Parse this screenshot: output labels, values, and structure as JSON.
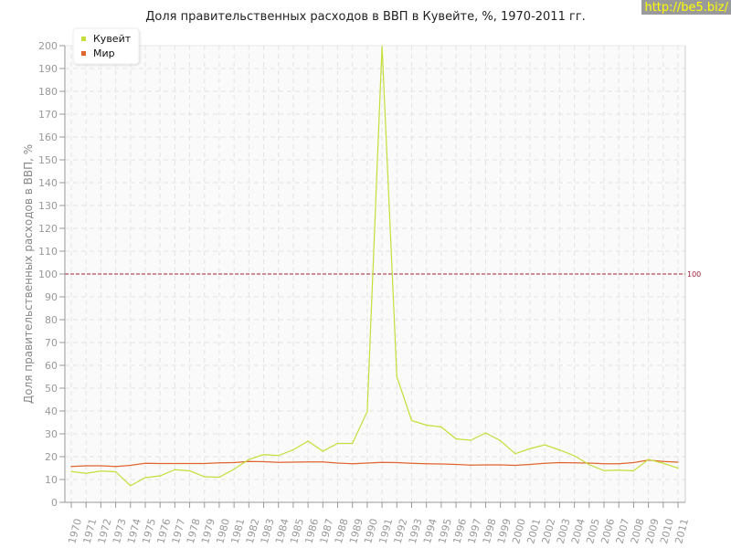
{
  "chart_data": {
    "type": "line",
    "title": "Доля правительственных расходов в ВВП в Кувейте, %, 1970-2011 гг.",
    "xlabel": "",
    "ylabel": "Доля правительственных расходов в ВВП, %",
    "ylim": [
      0,
      200
    ],
    "yticks": [
      0,
      10,
      20,
      30,
      40,
      50,
      60,
      70,
      80,
      90,
      100,
      110,
      120,
      130,
      140,
      150,
      160,
      170,
      180,
      190,
      200
    ],
    "grid": true,
    "legend_position": "top-left",
    "x": [
      1970,
      1971,
      1972,
      1973,
      1974,
      1975,
      1976,
      1977,
      1978,
      1979,
      1980,
      1981,
      1982,
      1983,
      1984,
      1985,
      1986,
      1987,
      1988,
      1989,
      1990,
      1991,
      1992,
      1993,
      1994,
      1995,
      1996,
      1997,
      1998,
      1999,
      2000,
      2001,
      2002,
      2003,
      2004,
      2005,
      2006,
      2007,
      2008,
      2009,
      2010,
      2011
    ],
    "series": [
      {
        "name": "Кувейт",
        "color": "#c3df3a",
        "values": [
          13.5,
          12.7,
          13.7,
          13.4,
          7.3,
          10.8,
          11.6,
          14.3,
          13.8,
          11.2,
          11.0,
          14.5,
          18.8,
          20.9,
          20.5,
          23.0,
          26.8,
          22.4,
          25.8,
          25.8,
          39.8,
          200,
          55,
          35.8,
          33.8,
          33,
          27.8,
          27.2,
          30.4,
          27,
          21.3,
          23.5,
          25.2,
          22.9,
          20.4,
          16.5,
          13.9,
          14.1,
          13.8,
          18.8,
          17.1,
          15.0
        ]
      },
      {
        "name": "Мир",
        "color": "#e0652e",
        "values": [
          15.7,
          16,
          16,
          15.7,
          16.2,
          17.1,
          17,
          17,
          17,
          17,
          17.3,
          17.4,
          17.9,
          17.8,
          17.5,
          17.6,
          17.7,
          17.7,
          17.2,
          16.9,
          17.2,
          17.5,
          17.4,
          17.1,
          16.9,
          16.8,
          16.6,
          16.3,
          16.4,
          16.4,
          16.2,
          16.6,
          17.1,
          17.4,
          17.3,
          17.2,
          16.9,
          16.9,
          17.4,
          18.5,
          17.9,
          17.6
        ]
      }
    ],
    "reference_line": {
      "value": 100,
      "label": "100",
      "color": "#a0213a"
    }
  },
  "watermark": "http://be5.biz/"
}
